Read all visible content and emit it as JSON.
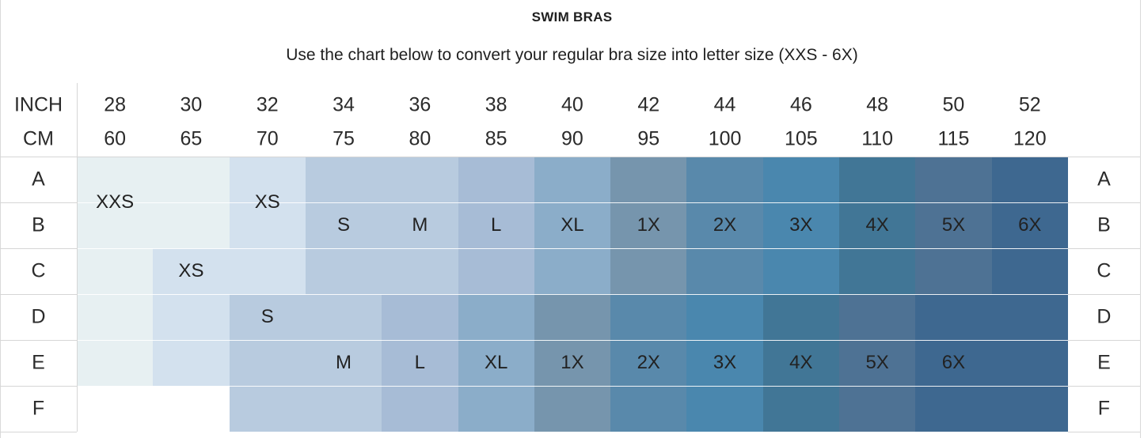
{
  "title": "SWIM BRAS",
  "subtitle": "Use the chart below to convert your regular bra size into letter size (XXS - 6X)",
  "header": {
    "inch_label": "INCH",
    "cm_label": "CM",
    "inch": [
      "28",
      "30",
      "32",
      "34",
      "36",
      "38",
      "40",
      "42",
      "44",
      "46",
      "48",
      "50",
      "52"
    ],
    "cm": [
      "60",
      "65",
      "70",
      "75",
      "80",
      "85",
      "90",
      "95",
      "100",
      "105",
      "110",
      "115",
      "120"
    ]
  },
  "cups": [
    "A",
    "B",
    "C",
    "D",
    "E",
    "F"
  ],
  "colors": {
    "c0": "#e7f0f2",
    "c1": "#d3e1ee",
    "c2": "#b8cbdf",
    "c3": "#a7bcd6",
    "c4": "#8badc9",
    "c5": "#7695ad",
    "c6": "#5989ab",
    "c7": "#4a87ae",
    "c8": "#417696",
    "c9": "#4e7294",
    "c10": "#3e6890"
  },
  "grid": [
    [
      "c0",
      "c0",
      "c1",
      "c2",
      "c2",
      "c3",
      "c4",
      "c5",
      "c6",
      "c7",
      "c8",
      "c9",
      "c10"
    ],
    [
      "c0",
      "c0",
      "c1",
      "c2",
      "c2",
      "c3",
      "c4",
      "c5",
      "c6",
      "c7",
      "c8",
      "c9",
      "c10"
    ],
    [
      "c0",
      "c1",
      "c1",
      "c2",
      "c2",
      "c3",
      "c4",
      "c5",
      "c6",
      "c7",
      "c8",
      "c9",
      "c10"
    ],
    [
      "c0",
      "c1",
      "c2",
      "c2",
      "c3",
      "c4",
      "c5",
      "c6",
      "c7",
      "c8",
      "c9",
      "c10",
      "c10"
    ],
    [
      "c0",
      "c1",
      "c2",
      "c2",
      "c3",
      "c4",
      "c5",
      "c6",
      "c7",
      "c8",
      "c9",
      "c10",
      "c10"
    ],
    [
      "none",
      "none",
      "c2",
      "c2",
      "c3",
      "c4",
      "c5",
      "c6",
      "c7",
      "c8",
      "c9",
      "c10",
      "c10"
    ]
  ],
  "labels": [
    {
      "text": "XXS",
      "col": 0,
      "row": 0.5
    },
    {
      "text": "XS",
      "col": 2,
      "row": 0.5
    },
    {
      "text": "S",
      "col": 3,
      "row": 1
    },
    {
      "text": "M",
      "col": 4,
      "row": 1
    },
    {
      "text": "L",
      "col": 5,
      "row": 1
    },
    {
      "text": "XL",
      "col": 6,
      "row": 1
    },
    {
      "text": "1X",
      "col": 7,
      "row": 1
    },
    {
      "text": "2X",
      "col": 8,
      "row": 1
    },
    {
      "text": "3X",
      "col": 9,
      "row": 1
    },
    {
      "text": "4X",
      "col": 10,
      "row": 1
    },
    {
      "text": "5X",
      "col": 11,
      "row": 1
    },
    {
      "text": "6X",
      "col": 12,
      "row": 1
    },
    {
      "text": "XS",
      "col": 1,
      "row": 2
    },
    {
      "text": "S",
      "col": 2,
      "row": 3
    },
    {
      "text": "M",
      "col": 3,
      "row": 4
    },
    {
      "text": "L",
      "col": 4,
      "row": 4
    },
    {
      "text": "XL",
      "col": 5,
      "row": 4
    },
    {
      "text": "1X",
      "col": 6,
      "row": 4
    },
    {
      "text": "2X",
      "col": 7,
      "row": 4
    },
    {
      "text": "3X",
      "col": 8,
      "row": 4
    },
    {
      "text": "4X",
      "col": 9,
      "row": 4
    },
    {
      "text": "5X",
      "col": 10,
      "row": 4
    },
    {
      "text": "6X",
      "col": 11,
      "row": 4
    }
  ]
}
